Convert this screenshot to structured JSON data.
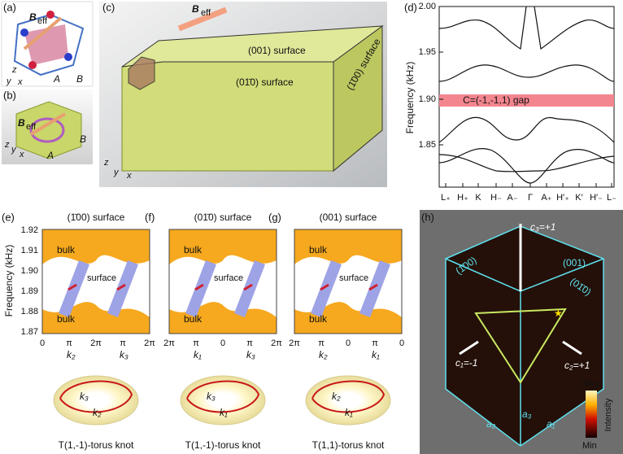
{
  "panels": {
    "a": {
      "label": "(a)",
      "beff": "B",
      "beff_sub": "eff",
      "point_a": "A",
      "point_b": "B",
      "axes": [
        "z",
        "y",
        "x"
      ]
    },
    "b": {
      "label": "(b)",
      "beff": "B",
      "beff_sub": "eff",
      "point_a": "A",
      "point_b": "B",
      "axes": [
        "z",
        "y",
        "x"
      ]
    },
    "c": {
      "label": "(c)",
      "beff": "B",
      "beff_sub": "eff",
      "surfaces": [
        "(001) surface",
        "(01̄0) surface",
        "(1̄00) surface"
      ],
      "axes": [
        "z",
        "y",
        "x"
      ]
    },
    "d": {
      "label": "(d)",
      "ylabel": "Frequency (kHz)",
      "yticks": [
        "2.00",
        "1.95",
        "1.90",
        "1.85"
      ],
      "xticks": [
        "L₊",
        "H₊",
        "K",
        "H₋",
        "A₋",
        "Γ",
        "A₊",
        "H′₊",
        "K′",
        "H′₋",
        "L₋"
      ],
      "gap_label": "C=(-1,-1,1) gap"
    },
    "e": {
      "label": "(e)",
      "title": "(1̄00) surface",
      "ylabel": "Frequency (kHz)",
      "yticks": [
        "1.92",
        "1.91",
        "1.90",
        "1.89",
        "1.88",
        "1.87"
      ],
      "bulk": "bulk",
      "surface": "surface",
      "xticks": [
        "0",
        "π",
        "2π",
        "π",
        "2π"
      ],
      "k_labels": [
        "k₂",
        "k₃"
      ],
      "knot_k": [
        "k₃",
        "k₂"
      ],
      "caption": "T(1,-1)-torus knot"
    },
    "f": {
      "label": "(f)",
      "title": "(01̄0) surface",
      "bulk": "bulk",
      "surface": "surface",
      "xticks": [
        "2π",
        "π",
        "0",
        "π",
        "2π"
      ],
      "k_labels": [
        "k₁",
        "k₃"
      ],
      "knot_k": [
        "k₃",
        "k₁"
      ],
      "caption": "T(1,-1)-torus knot"
    },
    "g": {
      "label": "(g)",
      "title": "(001) surface",
      "bulk": "bulk",
      "surface": "surface",
      "xticks": [
        "2π",
        "π",
        "0",
        "π",
        "0"
      ],
      "k_labels": [
        "k₂",
        "k₁"
      ],
      "knot_k": [
        "k₂",
        "k₁"
      ],
      "caption": "T(1,1)-torus knot"
    },
    "h": {
      "label": "(h)",
      "chern": [
        "c₃=+1",
        "c₁=-1",
        "c₂=+1"
      ],
      "faces": [
        "(001)",
        "(1̄00)",
        "(01̄0)"
      ],
      "lattice": [
        "a₃",
        "a₂",
        "a₁"
      ],
      "colorbar": [
        "Max",
        "Min"
      ],
      "colorbar_title": "Intensity"
    }
  }
}
